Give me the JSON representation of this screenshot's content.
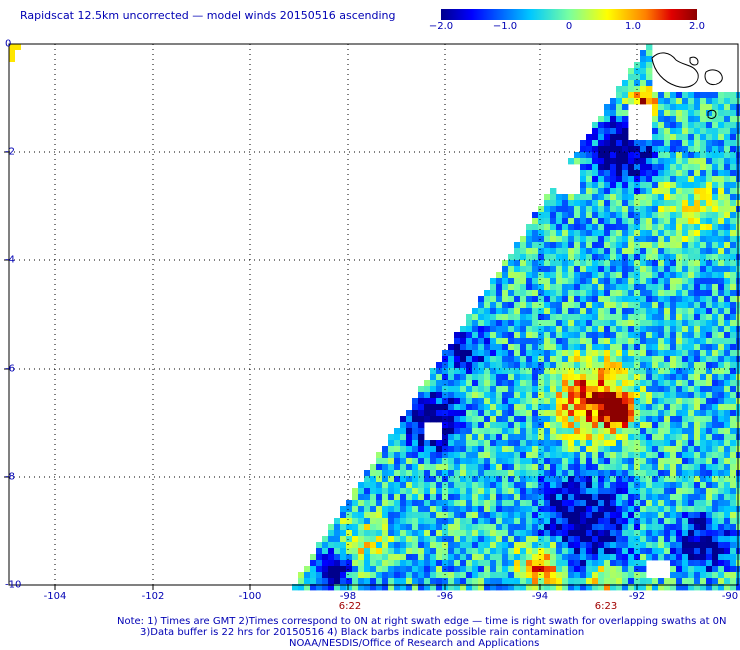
{
  "title": "Rapidscat 12.5km uncorrected — model winds 20150516 ascending",
  "colorbar": {
    "labels": [
      "−2.0",
      "−1.0",
      "0",
      "1.0",
      "2.0"
    ],
    "min": -2.0,
    "max": 2.0,
    "stops": [
      "#00008c",
      "#0000ff",
      "#00c8ff",
      "#78ffa0",
      "#ffff00",
      "#ff8000",
      "#e00000",
      "#8c0000"
    ]
  },
  "axes": {
    "lon_labels": [
      "-104",
      "-102",
      "-100",
      "-98",
      "-96",
      "-94",
      "-92",
      "-90"
    ],
    "lat_labels": [
      "0",
      "-2",
      "-4",
      "-6",
      "-8",
      "-10"
    ],
    "lon_range": [
      -105,
      -90
    ],
    "lat_range": [
      -10,
      0
    ]
  },
  "time_labels": [
    "6:22",
    "6:23"
  ],
  "notes": [
    "Note: 1) Times are GMT 2)Times correspond to 0N at right swath edge — time is right swath for overlapping swaths at 0N",
    "3)Data buffer is 22 hrs for 20150516 4) Black barbs indicate possible rain contamination",
    "NOAA/NESDIS/Office of Research and Applications"
  ],
  "icons": {
    "coastline": "island-coastline-icon"
  }
}
